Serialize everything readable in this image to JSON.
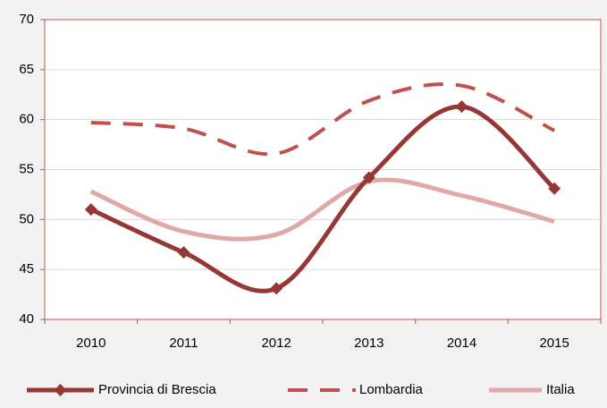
{
  "chart_data": {
    "type": "line",
    "categories": [
      "2010",
      "2011",
      "2012",
      "2013",
      "2014",
      "2015"
    ],
    "series": [
      {
        "name": "Provincia di Brescia",
        "color": "#953735",
        "style": "solid",
        "marker": "diamond",
        "values": [
          51.0,
          46.7,
          43.1,
          54.2,
          61.3,
          53.1
        ]
      },
      {
        "name": "Lombardia",
        "color": "#c0504d",
        "style": "dashed",
        "values": [
          59.7,
          59.1,
          56.6,
          61.9,
          63.4,
          58.9
        ]
      },
      {
        "name": "Italia",
        "color": "#e0a9a7",
        "style": "solid",
        "values": [
          52.8,
          48.8,
          48.5,
          53.8,
          52.4,
          49.8
        ]
      }
    ],
    "ylim": [
      40,
      70
    ],
    "yticks": [
      40,
      45,
      50,
      55,
      60,
      65,
      70
    ],
    "grid": true,
    "legend": "bottom"
  }
}
